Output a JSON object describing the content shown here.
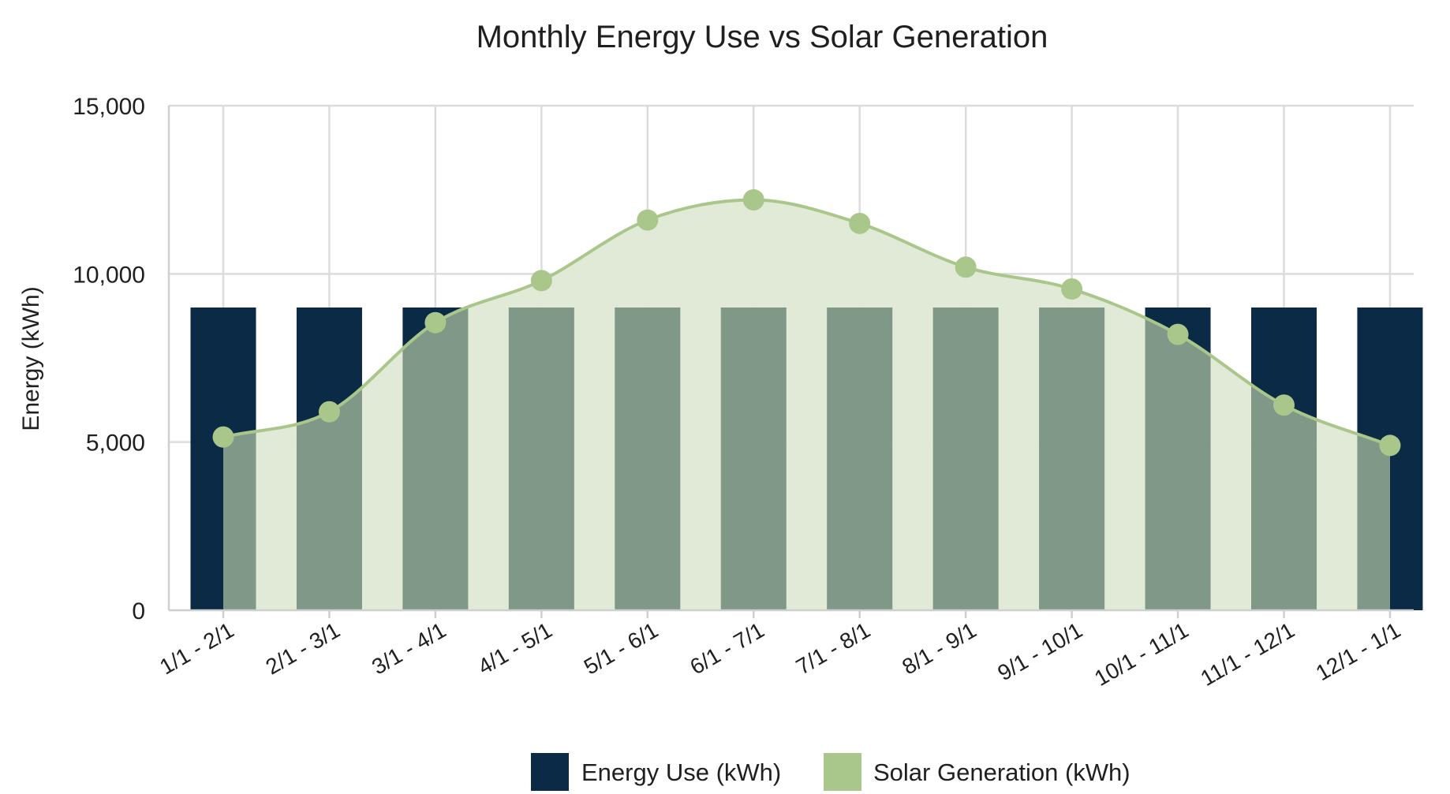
{
  "chart_data": {
    "type": "bar",
    "title": "Monthly Energy Use vs Solar Generation",
    "xlabel": "",
    "ylabel": "Energy (kWh)",
    "ylim": [
      0,
      15000
    ],
    "yticks": [
      0,
      5000,
      10000,
      15000
    ],
    "ytick_labels": [
      "0",
      "5,000",
      "10,000",
      "15,000"
    ],
    "grid": true,
    "legend_position": "bottom",
    "categories": [
      "1/1 - 2/1",
      "2/1 - 3/1",
      "3/1 - 4/1",
      "4/1 - 5/1",
      "5/1 - 6/1",
      "6/1 - 7/1",
      "7/1 - 8/1",
      "8/1 - 9/1",
      "9/1 - 10/1",
      "10/1 - 11/1",
      "11/1 - 12/1",
      "12/1 - 1/1"
    ],
    "series": [
      {
        "name": "Energy Use (kWh)",
        "type": "bar",
        "color": "#0b2a45",
        "values": [
          9000,
          9000,
          9000,
          9000,
          9000,
          9000,
          9000,
          9000,
          9000,
          9000,
          9000,
          9000
        ]
      },
      {
        "name": "Solar Generation (kWh)",
        "type": "area",
        "color": "#a9c78a",
        "fill": "#dfe9d4",
        "overlap_color": "#7f9888",
        "values": [
          5150,
          5900,
          8550,
          9800,
          11600,
          12200,
          11500,
          10200,
          9550,
          8200,
          6100,
          4900
        ]
      }
    ]
  }
}
